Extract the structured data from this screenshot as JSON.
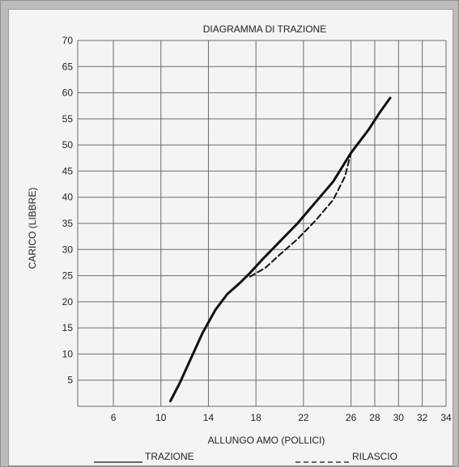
{
  "chart_data": {
    "type": "line",
    "title": "DIAGRAMMA DI TRAZIONE",
    "xlabel": "ALLUNGO AMO (POLLICI)",
    "ylabel": "CARICO (LIBBRE)",
    "xlim": [
      3,
      34
    ],
    "ylim": [
      0,
      70
    ],
    "x_ticks": [
      6,
      10,
      14,
      18,
      22,
      26,
      28,
      30,
      32,
      34
    ],
    "y_ticks": [
      5,
      10,
      15,
      20,
      25,
      30,
      35,
      40,
      45,
      50,
      55,
      60,
      65,
      70
    ],
    "grid": true,
    "legend_position": "bottom",
    "series": [
      {
        "name": "TRAZIONE",
        "style": "solid",
        "color": "#111111",
        "points": [
          [
            10.8,
            1
          ],
          [
            11.6,
            4.5
          ],
          [
            12.5,
            9
          ],
          [
            13.5,
            14
          ],
          [
            14.6,
            18.5
          ],
          [
            15.6,
            21.5
          ],
          [
            16.6,
            23.5
          ],
          [
            17.5,
            25.5
          ],
          [
            18.5,
            28
          ],
          [
            20,
            31.5
          ],
          [
            21.5,
            35
          ],
          [
            23,
            39
          ],
          [
            24.5,
            43
          ],
          [
            26,
            48.5
          ],
          [
            27.5,
            53
          ],
          [
            28.5,
            56.5
          ],
          [
            29.3,
            59
          ]
        ]
      },
      {
        "name": "RILASCIO",
        "style": "dashed",
        "color": "#111111",
        "points": [
          [
            17.5,
            24.8
          ],
          [
            18.8,
            26.5
          ],
          [
            20,
            29
          ],
          [
            21.5,
            32
          ],
          [
            23,
            35.5
          ],
          [
            24.5,
            39.5
          ],
          [
            25.5,
            44
          ],
          [
            26,
            48.5
          ]
        ]
      }
    ]
  }
}
